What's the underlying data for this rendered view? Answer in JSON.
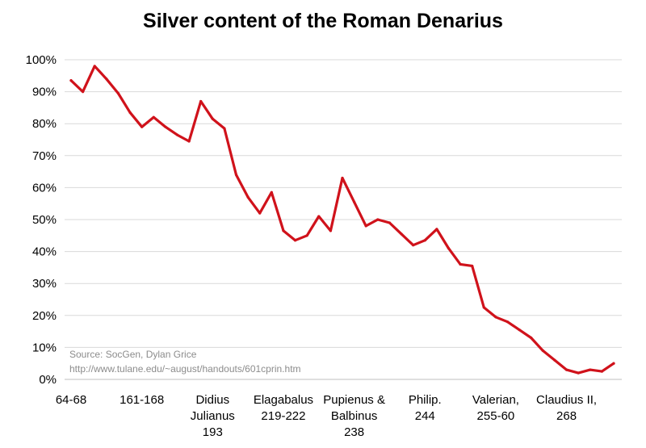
{
  "chart_data": {
    "type": "line",
    "title": "Silver content of the Roman Denarius",
    "xlabel": "",
    "ylabel": "",
    "ylim": [
      0,
      100
    ],
    "yticks": [
      "0%",
      "10%",
      "20%",
      "30%",
      "40%",
      "50%",
      "60%",
      "70%",
      "80%",
      "90%",
      "100%"
    ],
    "grid": true,
    "legend": "none",
    "line_color": "#d0121b",
    "x_tick_labels": [
      {
        "index": 0,
        "lines": [
          "64-68"
        ]
      },
      {
        "index": 6,
        "lines": [
          "161-168"
        ]
      },
      {
        "index": 12,
        "lines": [
          "Didius",
          "Julianus",
          "193"
        ]
      },
      {
        "index": 18,
        "lines": [
          "Elagabalus",
          "219-222"
        ]
      },
      {
        "index": 24,
        "lines": [
          "Pupienus &",
          "Balbinus",
          "238"
        ]
      },
      {
        "index": 30,
        "lines": [
          "Philip.",
          "244"
        ]
      },
      {
        "index": 36,
        "lines": [
          "Valerian,",
          "255-60"
        ]
      },
      {
        "index": 42,
        "lines": [
          "Claudius II,",
          "268"
        ]
      }
    ],
    "series": [
      {
        "values": [
          93.5,
          90,
          98,
          94,
          89.5,
          83.5,
          79,
          82,
          79,
          76.5,
          74.5,
          87,
          81.5,
          78.5,
          64,
          57,
          52,
          58.5,
          46.5,
          43.5,
          45,
          51,
          46.5,
          63,
          55.5,
          48,
          50,
          49,
          45.5,
          42,
          43.5,
          47,
          41,
          36,
          35.5,
          22.5,
          19.5,
          18,
          15.5,
          13,
          9,
          6,
          3,
          2,
          3,
          2.5,
          5
        ]
      }
    ],
    "source": [
      "Source: SocGen, Dylan Grice",
      "http://www.tulane.edu/~august/handouts/601cprin.htm"
    ]
  }
}
